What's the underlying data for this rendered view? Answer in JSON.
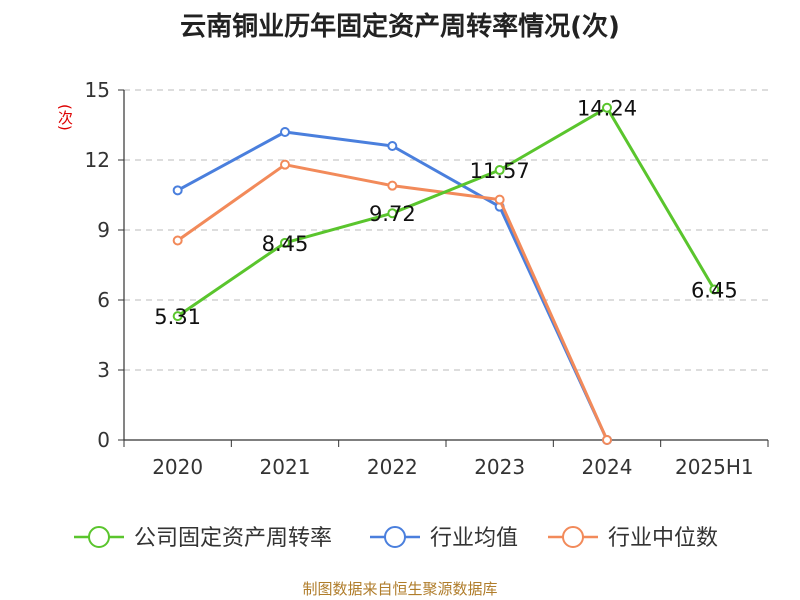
{
  "chart_data": {
    "type": "line",
    "title": "云南铜业历年固定资产周转率情况(次)",
    "unit_label": "(次)",
    "categories": [
      "2020",
      "2021",
      "2022",
      "2023",
      "2024",
      "2025H1"
    ],
    "ylim": [
      0,
      15
    ],
    "yticks": [
      0,
      3,
      6,
      9,
      12,
      15
    ],
    "grid": true,
    "legend_position": "bottom",
    "series": [
      {
        "name": "公司固定资产周转率",
        "color": "#5ac52d",
        "values": [
          5.31,
          8.45,
          9.72,
          11.57,
          14.24,
          6.45
        ],
        "labels": [
          "5.31",
          "8.45",
          "9.72",
          "11.57",
          "14.24",
          "6.45"
        ]
      },
      {
        "name": "行业均值",
        "color": "#4a7fdd",
        "values": [
          10.7,
          13.2,
          12.6,
          10.0,
          0,
          null
        ]
      },
      {
        "name": "行业中位数",
        "color": "#f28a5a",
        "values": [
          8.55,
          11.8,
          10.9,
          10.3,
          0.0,
          null
        ]
      }
    ]
  },
  "source": "制图数据来自恒生聚源数据库"
}
